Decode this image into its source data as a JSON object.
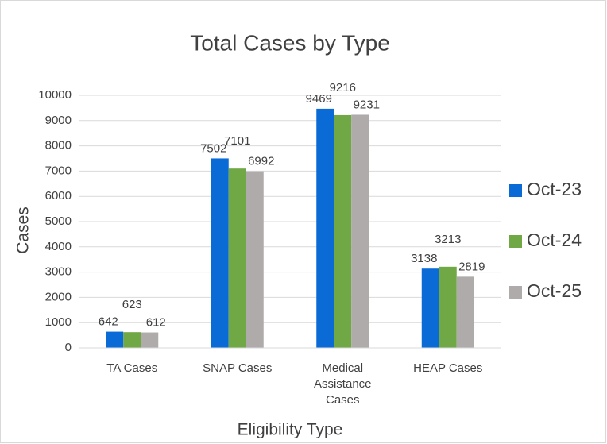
{
  "chart_data": {
    "type": "bar",
    "title": "Total Cases by Type",
    "x_label": "Eligibility Type",
    "y_label": "Cases",
    "categories": [
      "TA Cases",
      "SNAP Cases",
      "Medical Assistance Cases",
      "HEAP Cases"
    ],
    "series": [
      {
        "name": "Oct-23",
        "color": "#0a6ad6",
        "values": [
          642,
          7502,
          9469,
          3138
        ]
      },
      {
        "name": "Oct-24",
        "color": "#70a845",
        "values": [
          623,
          7101,
          9216,
          3213
        ]
      },
      {
        "name": "Oct-25",
        "color": "#b0abab",
        "values": [
          612,
          6992,
          9231,
          2819
        ]
      }
    ],
    "ylim": [
      0,
      10000
    ],
    "yticks": [
      0,
      1000,
      2000,
      3000,
      4000,
      5000,
      6000,
      7000,
      8000,
      9000,
      10000
    ],
    "grid": true,
    "legend": "right"
  }
}
